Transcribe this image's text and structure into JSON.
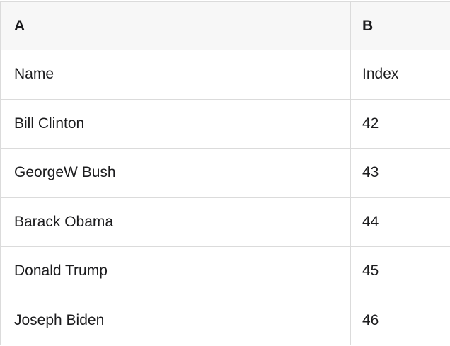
{
  "table": {
    "column_headers": {
      "a": "A",
      "b": "B"
    },
    "rows": [
      {
        "a": "Name",
        "b": "Index"
      },
      {
        "a": "Bill Clinton",
        "b": "42"
      },
      {
        "a": "GeorgeW Bush",
        "b": "43"
      },
      {
        "a": "Barack Obama",
        "b": "44"
      },
      {
        "a": "Donald Trump",
        "b": "45"
      },
      {
        "a": "Joseph Biden",
        "b": "46"
      }
    ],
    "colors": {
      "header_bg": "#f7f7f7",
      "border": "#dbdbdb",
      "text": "#1c1c1e",
      "cell_bg": "#ffffff"
    }
  }
}
